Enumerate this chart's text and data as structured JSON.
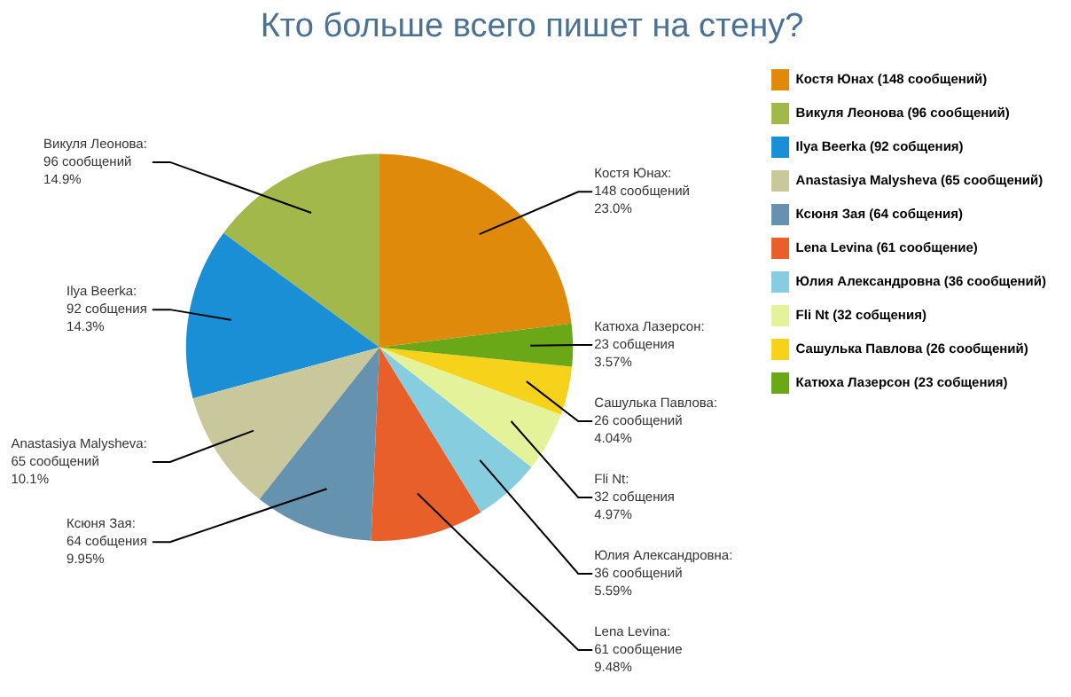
{
  "chart_data": {
    "type": "pie",
    "title": "Кто больше всего пишет на стену?",
    "categories": [
      "Костя Юнах (148 сообщений)",
      "Викуля Леонова (96 сообщений)",
      "Ilya Beerka (92 собщения)",
      "Anastasiya Malysheva (65 сообщений)",
      "Ксюня Зая (64 собщения)",
      "Lena Levina (61 сообщение)",
      "Юлия Александровна (36 сообщений)",
      "Fli Nt (32 собщения)",
      "Сашулька Павлова (26 сообщений)",
      "Катюха Лазерсон (23 собщения)"
    ],
    "values": [
      148,
      96,
      92,
      65,
      64,
      61,
      36,
      32,
      26,
      23
    ],
    "colors": [
      "#e08a0b",
      "#a3b84a",
      "#1a8fd6",
      "#c8c89c",
      "#6592ae",
      "#e85f2a",
      "#86cde0",
      "#e4f39a",
      "#f7d21a",
      "#6aa818"
    ],
    "value_labels": [
      "Костя Юнах:\n148 сообщений\n23.0%",
      "Викуля Леонова:\n96 сообщений\n14.9%",
      "Ilya Beerka:\n92 собщения\n14.3%",
      "Anastasiya Malysheva:\n65 сообщений\n10.1%",
      "Ксюня Зая:\n64 собщения\n9.95%",
      "Lena Levina:\n61 сообщение\n9.48%",
      "Юлия Александровна:\n36 сообщений\n5.59%",
      "Fli Nt:\n32 собщения\n4.97%",
      "Сашулька Павлова:\n26 сообщений\n4.04%",
      "Катюха Лазерсон:\n23 собщения\n3.57%"
    ],
    "legend": "right"
  }
}
